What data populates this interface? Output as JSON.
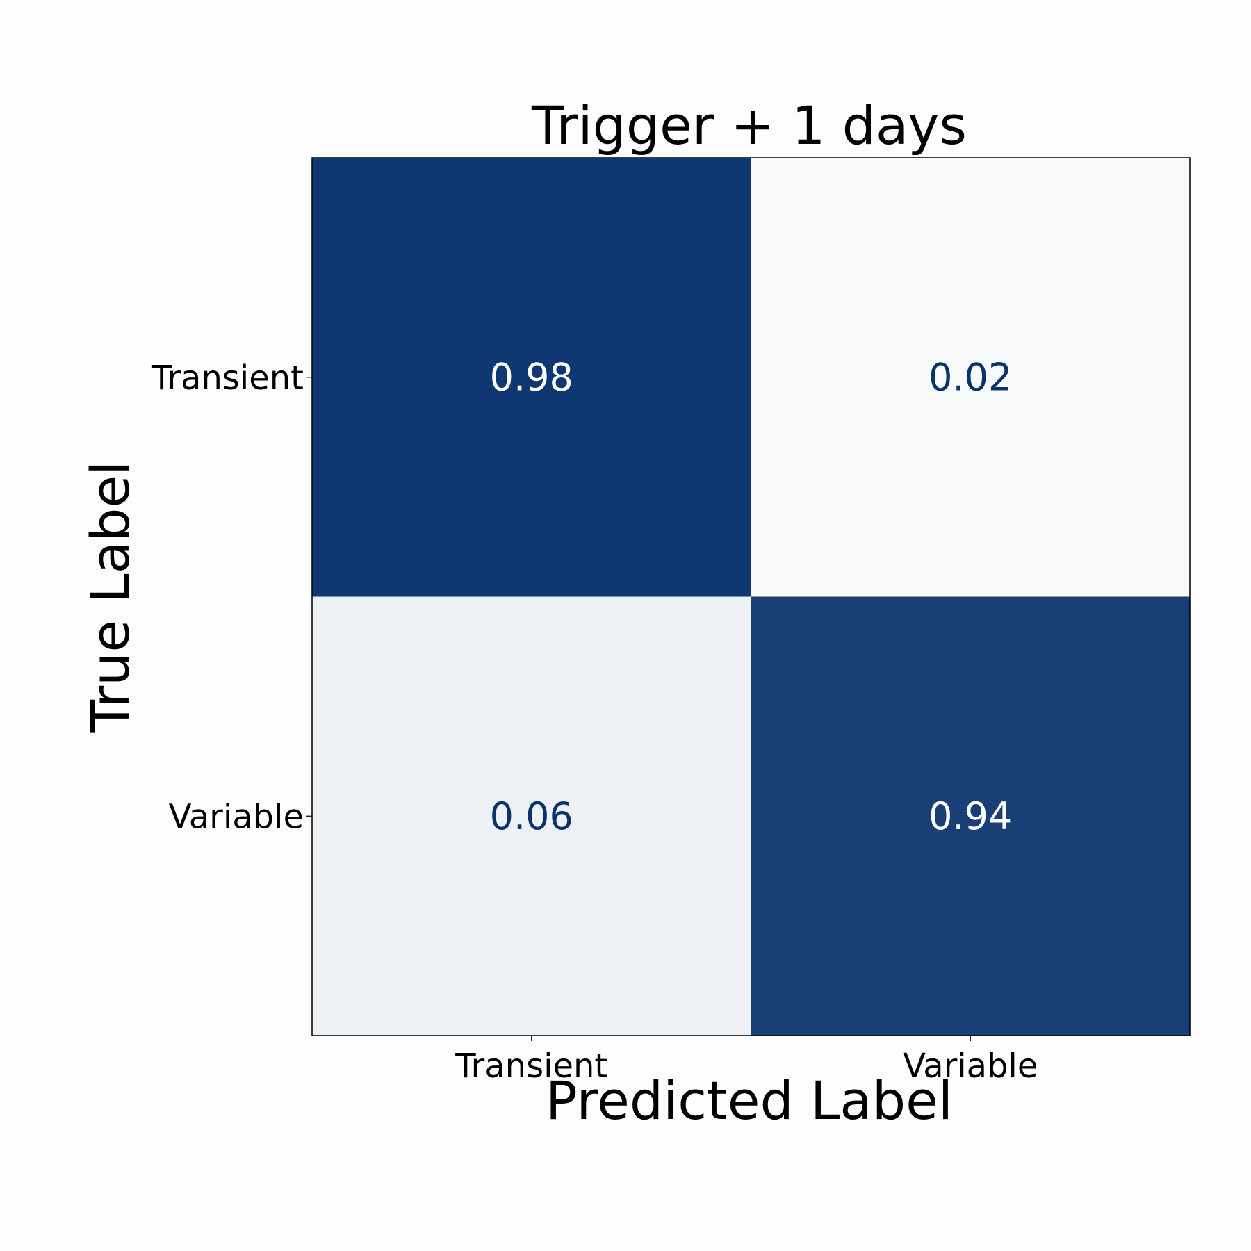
{
  "chart_data": {
    "type": "heatmap",
    "title": "Trigger + 1 days",
    "xlabel": "Predicted Label",
    "ylabel": "True Label",
    "x_categories": [
      "Transient",
      "Variable"
    ],
    "y_categories": [
      "Transient",
      "Variable"
    ],
    "values": [
      [
        0.98,
        0.02
      ],
      [
        0.06,
        0.94
      ]
    ],
    "value_labels": [
      [
        "0.98",
        "0.02"
      ],
      [
        "0.06",
        "0.94"
      ]
    ],
    "colormap": "Blues",
    "vmin": 0.0,
    "vmax": 1.0,
    "colors": {
      "low": "#fdfdfd",
      "high": "#0a336e",
      "text_on_dark": "#ffffff",
      "text_on_light": "#0a336e"
    },
    "grid": false,
    "legend": "none"
  }
}
